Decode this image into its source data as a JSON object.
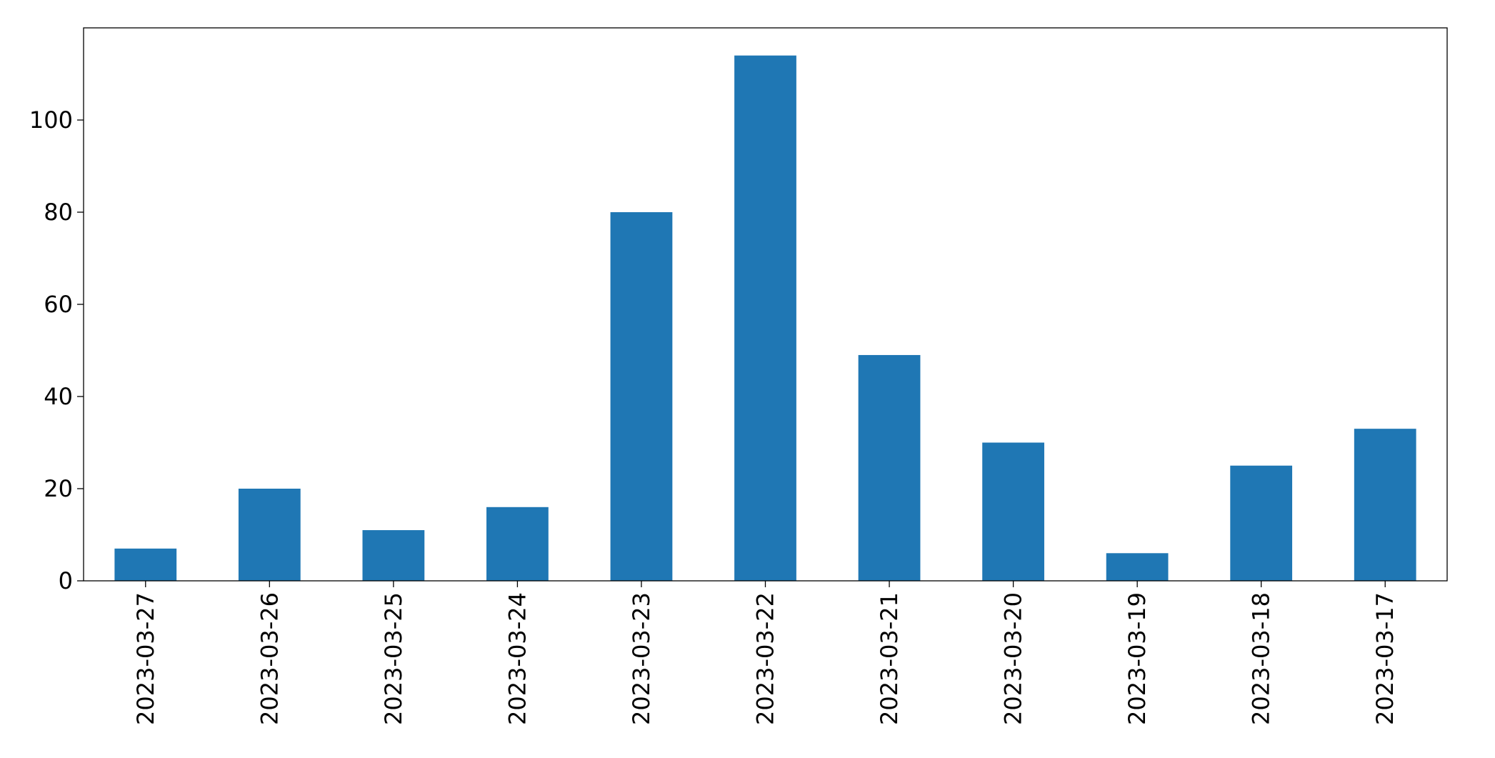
{
  "chart_data": {
    "type": "bar",
    "categories": [
      "2023-03-27",
      "2023-03-26",
      "2023-03-25",
      "2023-03-24",
      "2023-03-23",
      "2023-03-22",
      "2023-03-21",
      "2023-03-20",
      "2023-03-19",
      "2023-03-18",
      "2023-03-17"
    ],
    "values": [
      7,
      20,
      11,
      16,
      80,
      114,
      49,
      30,
      6,
      25,
      33
    ],
    "color": "#1f77b4",
    "ylim": [
      0,
      120
    ],
    "yticks": [
      0,
      20,
      40,
      60,
      80,
      100
    ],
    "grid": false
  }
}
